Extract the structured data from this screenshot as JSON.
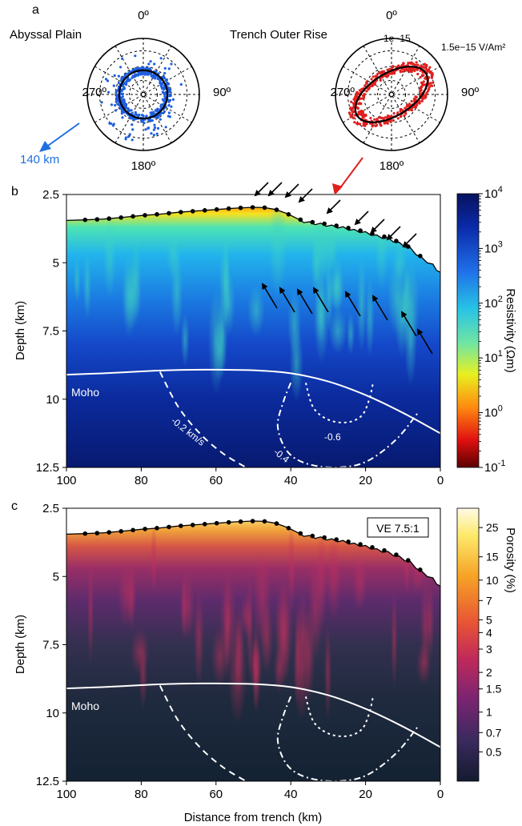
{
  "panel_labels": {
    "a": "a",
    "b": "b",
    "c": "c"
  },
  "polar": {
    "left_title": "Abyssal Plain",
    "right_title": "Trench Outer Rise",
    "angles": [
      "0º",
      "90º",
      "180º",
      "270º"
    ],
    "ring_labels": [
      "1e−15",
      "1.5e−15 V/Am²"
    ],
    "distance_label": "140 km",
    "colors": {
      "abyssal": "#1f5fe0",
      "outer_rise": "#e02020",
      "arrow_blue": "#1f6fe0",
      "arrow_red": "#e02020"
    }
  },
  "panel_b": {
    "ylabel": "Depth (km)",
    "y_ticks": [
      "2.5",
      "5",
      "7.5",
      "10",
      "12.5"
    ],
    "x_ticks": [
      "100",
      "80",
      "60",
      "40",
      "20",
      "0"
    ],
    "moho_label": "Moho",
    "contour_labels": [
      "-0.2 km/s",
      "-0.4",
      "-0.6"
    ],
    "colorbar_label": "Resistivity (Ωm)",
    "colorbar_ticks": [
      "10^4",
      "10^3",
      "10^2",
      "10^1",
      "10^0",
      "10^-1"
    ],
    "colorbar_ticks_display": [
      {
        "base": "10",
        "exp": "4"
      },
      {
        "base": "10",
        "exp": "3"
      },
      {
        "base": "10",
        "exp": "2"
      },
      {
        "base": "10",
        "exp": "1"
      },
      {
        "base": "10",
        "exp": "0"
      },
      {
        "base": "10",
        "exp": "-1"
      }
    ]
  },
  "panel_c": {
    "ylabel": "Depth (km)",
    "xlabel": "Distance from trench (km)",
    "y_ticks": [
      "2.5",
      "5",
      "7.5",
      "10",
      "12.5"
    ],
    "x_ticks": [
      "100",
      "80",
      "60",
      "40",
      "20",
      "0"
    ],
    "moho_label": "Moho",
    "ve_label": "VE 7.5:1",
    "colorbar_label": "Porosity (%)",
    "colorbar_ticks": [
      "25",
      "15",
      "10",
      "7",
      "5",
      "4",
      "3",
      "2",
      "1.5",
      "1",
      "0.7",
      "0.5"
    ]
  },
  "chart_data": [
    {
      "type": "heatmap",
      "title": "",
      "xlabel": "",
      "ylabel": "Depth (km)",
      "xlim": [
        100,
        0
      ],
      "ylim": [
        12.5,
        2.5
      ],
      "value": "Resistivity (Ωm)",
      "color_range": [
        0.1,
        10000
      ],
      "log_color": true,
      "seafloor": {
        "x": [
          100,
          95,
          90,
          85,
          80,
          75,
          70,
          65,
          60,
          55,
          50,
          47,
          44,
          41,
          38,
          35,
          32,
          29,
          26,
          23,
          20,
          17,
          14,
          11,
          8,
          5,
          2,
          0
        ],
        "y": [
          3.45,
          3.43,
          3.4,
          3.34,
          3.27,
          3.22,
          3.15,
          3.1,
          3.05,
          3.0,
          2.97,
          2.98,
          3.05,
          3.2,
          3.4,
          3.5,
          3.55,
          3.62,
          3.68,
          3.78,
          3.86,
          3.98,
          4.08,
          4.25,
          4.45,
          4.8,
          5.05,
          5.35
        ]
      },
      "moho": {
        "x": [
          100,
          90,
          80,
          70,
          60,
          50,
          40,
          30,
          20,
          10,
          0
        ],
        "y": [
          9.1,
          9.05,
          8.98,
          8.93,
          8.92,
          8.94,
          9.05,
          9.35,
          9.85,
          10.5,
          11.25
        ]
      },
      "contours": [
        {
          "label": "-0.2 km/s",
          "x": [
            75,
            70,
            64,
            58,
            52
          ],
          "y": [
            9.0,
            10.3,
            11.3,
            12.0,
            12.5
          ]
        },
        {
          "label": "-0.4",
          "x": [
            40,
            42,
            43.5,
            41,
            36,
            28,
            20,
            12,
            6
          ],
          "y": [
            9.4,
            10.1,
            11.0,
            11.9,
            12.35,
            12.5,
            12.3,
            11.5,
            10.5
          ]
        },
        {
          "label": "-0.6",
          "x": [
            36,
            34,
            30,
            25,
            21,
            19,
            18
          ],
          "y": [
            9.4,
            10.3,
            10.75,
            10.85,
            10.6,
            10.0,
            9.4
          ]
        }
      ]
    },
    {
      "type": "heatmap",
      "title": "",
      "xlabel": "Distance from trench (km)",
      "ylabel": "Depth (km)",
      "xlim": [
        100,
        0
      ],
      "ylim": [
        12.5,
        2.5
      ],
      "value": "Porosity (%)",
      "color_range": [
        0.3,
        35
      ],
      "log_color": true
    }
  ]
}
